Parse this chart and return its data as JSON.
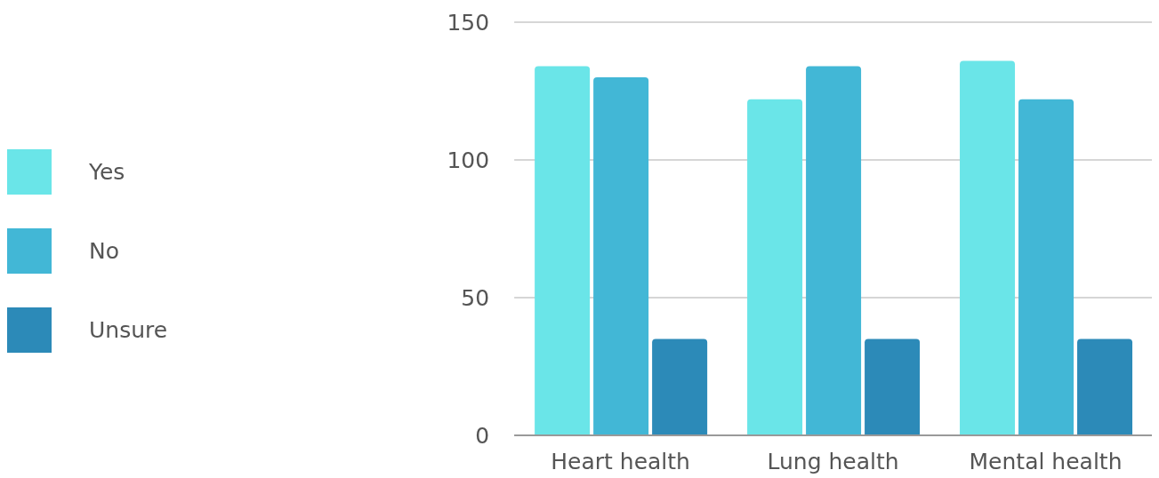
{
  "chart_data": {
    "type": "bar",
    "categories": [
      "Heart health",
      "Lung health",
      "Mental health"
    ],
    "series": [
      {
        "name": "Yes",
        "color": "#6ae5e8",
        "values": [
          134,
          122,
          136
        ]
      },
      {
        "name": "No",
        "color": "#42b7d6",
        "values": [
          130,
          134,
          122
        ]
      },
      {
        "name": "Unsure",
        "color": "#2c8ab8",
        "values": [
          35,
          35,
          35
        ]
      }
    ],
    "ylim": [
      0,
      150
    ],
    "yticks": [
      0,
      50,
      100,
      150
    ],
    "grid": "y",
    "legend": "left"
  }
}
